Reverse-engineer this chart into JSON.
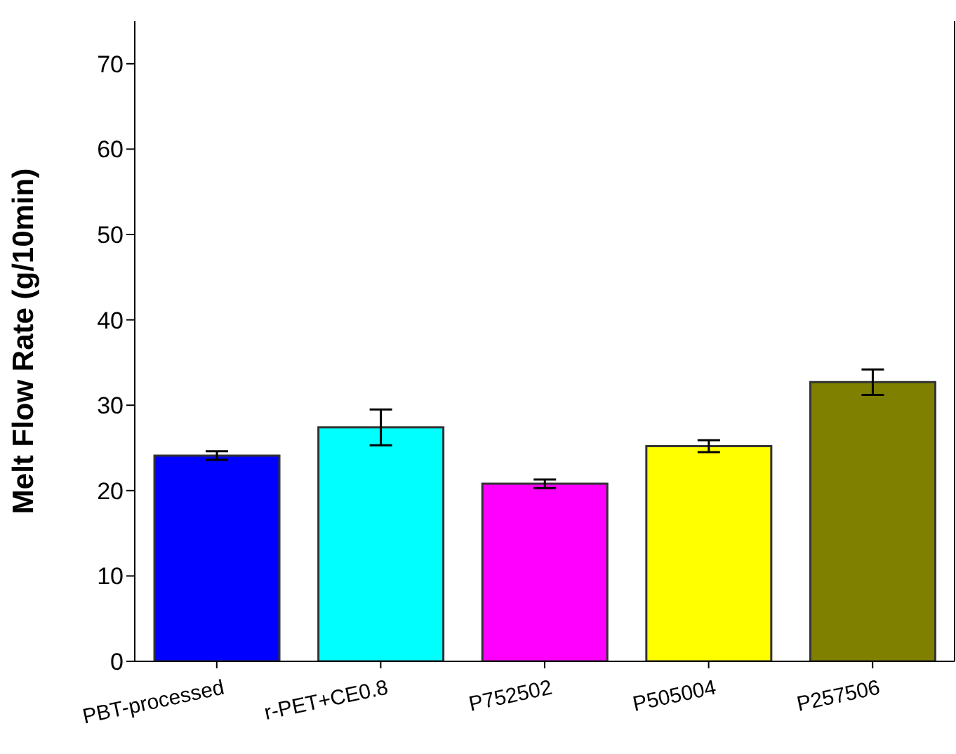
{
  "chart_data": {
    "type": "bar",
    "ylabel": "Melt Flow Rate (g/10min)",
    "categories": [
      "PBT-processed",
      "r-PET+CE0.8",
      "P752502",
      "P505004",
      "P257506"
    ],
    "values": [
      24.1,
      27.4,
      20.8,
      25.2,
      32.7
    ],
    "colors": [
      "#0000ff",
      "#00ffff",
      "#ff00ff",
      "#ffff00",
      "#808000"
    ],
    "errors": [
      0.5,
      2.1,
      0.5,
      0.7,
      1.5
    ],
    "ylim": [
      0,
      75
    ],
    "yticks": [
      0,
      10,
      20,
      30,
      40,
      50,
      60,
      70
    ],
    "grid": false
  }
}
